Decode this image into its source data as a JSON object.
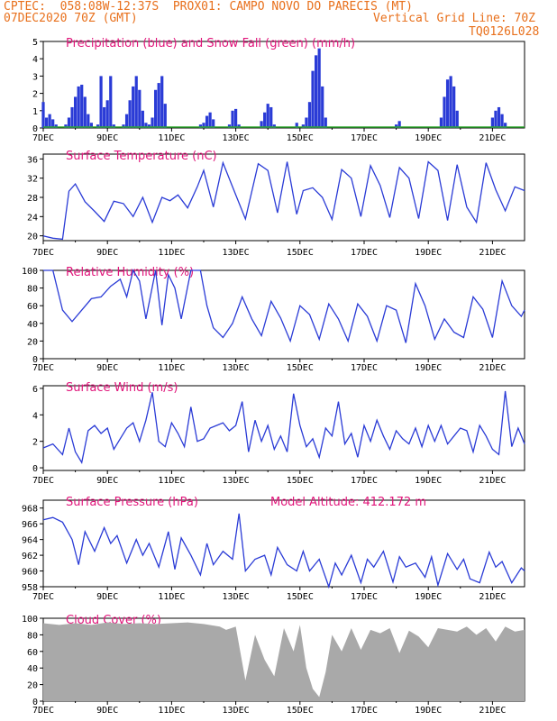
{
  "header": {
    "line1": "CPTEC:  058:08W-12:37S  PROX01: CAMPO NOVO DO PARECIS (MT)",
    "line2_left": "07DEC2020 70Z (GMT)",
    "line2_right": "Vertical Grid Line: 70Z",
    "line3_right": "TQ0126L028"
  },
  "colors": {
    "header": "#e8701c",
    "title": "#e0157a",
    "series": "#2a3bd6",
    "snow": "#2ea82e",
    "cloud": "#a9a9a9",
    "arrow": "#000000"
  },
  "x_labels": [
    "7DEC",
    "9DEC",
    "11DEC",
    "13DEC",
    "15DEC",
    "17DEC",
    "19DEC",
    "21DEC"
  ],
  "chart_data": [
    {
      "type": "bar",
      "title": "Precipitation (blue) and Snow Fall (green) (mm/h)",
      "yticks": [
        "0",
        "1",
        "2",
        "3",
        "4",
        "5"
      ],
      "ylim": [
        0,
        5
      ],
      "x_days": [
        0.0,
        0.1,
        0.2,
        0.3,
        0.4,
        0.5,
        0.6,
        0.7,
        0.8,
        0.9,
        1.0,
        1.1,
        1.2,
        1.3,
        1.4,
        1.5,
        1.6,
        1.7,
        1.8,
        1.9,
        2.0,
        2.1,
        2.2,
        2.3,
        2.4,
        2.5,
        2.6,
        2.7,
        2.8,
        2.9,
        3.0,
        3.1,
        3.2,
        3.3,
        3.4,
        3.5,
        3.6,
        3.7,
        3.8,
        3.9,
        4.0,
        4.1,
        4.2,
        4.3,
        4.4,
        4.5,
        4.6,
        4.7,
        4.8,
        4.9,
        5.0,
        5.1,
        5.2,
        5.3,
        5.4,
        5.5,
        5.6,
        5.7,
        5.8,
        5.9,
        6.0,
        6.1,
        6.2,
        6.3,
        6.4,
        6.5,
        6.6,
        6.7,
        6.8,
        6.9,
        7.0,
        7.1,
        7.2,
        7.3,
        7.4,
        7.5,
        7.6,
        7.7,
        7.8,
        7.9,
        8.0,
        8.1,
        8.2,
        8.3,
        8.4,
        8.5,
        8.6,
        8.7,
        8.8,
        8.9,
        9.0,
        9.1,
        9.2,
        9.3,
        9.4,
        9.5,
        9.6,
        9.7,
        9.8,
        9.9,
        10.0,
        10.1,
        10.2,
        10.3,
        10.4,
        10.5,
        10.6,
        10.7,
        10.8,
        10.9,
        11.0,
        11.1,
        11.2,
        11.3,
        11.4,
        11.5,
        11.6,
        11.7,
        11.8,
        11.9,
        12.0,
        12.1,
        12.2,
        12.3,
        12.4,
        12.5,
        12.6,
        12.7,
        12.8,
        12.9,
        13.0,
        13.1,
        13.2,
        13.3,
        13.4,
        13.5,
        13.6,
        13.7,
        13.8,
        13.9,
        14.0,
        14.1,
        14.2,
        14.3,
        14.4,
        14.5,
        14.6,
        14.7,
        14.8,
        14.9,
        15.0
      ],
      "series": [
        {
          "name": "Precipitation",
          "values": [
            1.5,
            0.6,
            0.8,
            0.5,
            0.2,
            0,
            0,
            0.2,
            0.6,
            1.2,
            1.8,
            2.4,
            2.5,
            1.8,
            0.8,
            0.3,
            0,
            0.2,
            3.0,
            1.2,
            1.6,
            3.0,
            0.2,
            0,
            0,
            0.2,
            0.8,
            1.6,
            2.4,
            3.0,
            2.2,
            1.0,
            0.3,
            0.2,
            0.6,
            2.2,
            2.6,
            3.0,
            1.4,
            0,
            0,
            0,
            0,
            0,
            0,
            0,
            0,
            0,
            0,
            0.2,
            0.3,
            0.7,
            0.9,
            0.5,
            0,
            0,
            0,
            0,
            0.2,
            1.0,
            1.1,
            0.2,
            0,
            0,
            0,
            0,
            0,
            0,
            0.4,
            0.9,
            1.4,
            1.2,
            0.2,
            0,
            0,
            0,
            0,
            0,
            0,
            0.3,
            0,
            0.2,
            0.6,
            1.5,
            3.3,
            4.2,
            4.6,
            2.4,
            0.6,
            0,
            0,
            0,
            0,
            0,
            0,
            0,
            0,
            0,
            0,
            0,
            0,
            0,
            0,
            0,
            0,
            0,
            0,
            0,
            0,
            0,
            0.2,
            0.4,
            0,
            0,
            0,
            0,
            0,
            0,
            0,
            0,
            0,
            0,
            0,
            0,
            0.6,
            1.8,
            2.8,
            3.0,
            2.4,
            1.0,
            0,
            0,
            0,
            0,
            0,
            0,
            0,
            0,
            0,
            0,
            0.6,
            1.0,
            1.2,
            0.8,
            0.3,
            0
          ]
        },
        {
          "name": "Snow Fall",
          "values": []
        }
      ]
    },
    {
      "type": "line",
      "title": "Surface Temperature (nC)",
      "yticks": [
        "20",
        "24",
        "28",
        "32",
        "36"
      ],
      "ylim": [
        19,
        37
      ],
      "x_days": [
        0,
        0.3,
        0.6,
        0.8,
        1.0,
        1.3,
        1.6,
        1.9,
        2.2,
        2.5,
        2.8,
        3.1,
        3.4,
        3.7,
        3.95,
        4.2,
        4.5,
        4.8,
        5.0,
        5.3,
        5.6,
        5.9,
        6.3,
        6.7,
        7.0,
        7.3,
        7.6,
        7.9,
        8.1,
        8.4,
        8.7,
        9.0,
        9.3,
        9.6,
        9.9,
        10.2,
        10.5,
        10.8,
        11.1,
        11.4,
        11.7,
        12.0,
        12.3,
        12.6,
        12.9,
        13.2,
        13.5,
        13.8,
        14.1,
        14.4,
        14.7,
        15.0
      ],
      "values": [
        20.0,
        19.5,
        19.3,
        29.3,
        30.8,
        27.1,
        25.1,
        23.0,
        27.2,
        26.7,
        24.0,
        28.0,
        22.8,
        28.0,
        27.3,
        28.5,
        25.8,
        30.2,
        33.6,
        26.0,
        35.2,
        30.2,
        23.5,
        35.0,
        33.6,
        24.8,
        35.4,
        24.5,
        29.4,
        30.0,
        28.0,
        23.4,
        33.8,
        32.0,
        24.0,
        34.6,
        30.5,
        23.8,
        34.2,
        32.0,
        23.6,
        35.4,
        33.6,
        23.2,
        34.8,
        26.0,
        22.8,
        35.2,
        29.6,
        25.2,
        30.2,
        29.4
      ]
    },
    {
      "type": "line",
      "title": "Relative Humidity (%)",
      "yticks": [
        "0",
        "20",
        "40",
        "60",
        "80",
        "100"
      ],
      "ylim": [
        0,
        100
      ],
      "x_days": [
        0,
        0.3,
        0.6,
        0.9,
        1.2,
        1.5,
        1.8,
        2.1,
        2.4,
        2.6,
        2.8,
        3.0,
        3.2,
        3.5,
        3.7,
        3.9,
        4.1,
        4.3,
        4.6,
        4.9,
        5.1,
        5.3,
        5.6,
        5.9,
        6.2,
        6.5,
        6.8,
        7.1,
        7.4,
        7.7,
        8.0,
        8.3,
        8.6,
        8.9,
        9.2,
        9.5,
        9.8,
        10.1,
        10.4,
        10.7,
        11.0,
        11.3,
        11.6,
        11.9,
        12.2,
        12.5,
        12.8,
        13.1,
        13.4,
        13.7,
        14.0,
        14.3,
        14.6,
        14.9,
        15.0
      ],
      "values": [
        100,
        100,
        55,
        42,
        55,
        68,
        70,
        82,
        90,
        70,
        100,
        88,
        45,
        100,
        38,
        95,
        80,
        45,
        100,
        100,
        60,
        35,
        24,
        40,
        70,
        45,
        26,
        65,
        46,
        20,
        60,
        50,
        22,
        62,
        45,
        20,
        62,
        48,
        20,
        60,
        55,
        18,
        85,
        60,
        22,
        45,
        30,
        24,
        70,
        56,
        24,
        88,
        60,
        48,
        55
      ]
    },
    {
      "type": "line",
      "title": "Surface Wind (m/s)",
      "yticks": [
        "0",
        "2",
        "4",
        "6"
      ],
      "ylim": [
        -0.2,
        6.2
      ],
      "x_days": [
        0,
        0.3,
        0.6,
        0.8,
        1.0,
        1.2,
        1.4,
        1.6,
        1.8,
        2.0,
        2.2,
        2.4,
        2.6,
        2.8,
        3.0,
        3.2,
        3.4,
        3.6,
        3.8,
        4.0,
        4.2,
        4.4,
        4.6,
        4.8,
        5.0,
        5.2,
        5.4,
        5.6,
        5.8,
        6.0,
        6.2,
        6.4,
        6.6,
        6.8,
        7.0,
        7.2,
        7.4,
        7.6,
        7.8,
        8.0,
        8.2,
        8.4,
        8.6,
        8.8,
        9.0,
        9.2,
        9.4,
        9.6,
        9.8,
        10.0,
        10.2,
        10.4,
        10.6,
        10.8,
        11.0,
        11.2,
        11.4,
        11.6,
        11.8,
        12.0,
        12.2,
        12.4,
        12.6,
        12.8,
        13.0,
        13.2,
        13.4,
        13.6,
        13.8,
        14.0,
        14.2,
        14.4,
        14.6,
        14.8,
        15.0
      ],
      "values": [
        1.5,
        1.8,
        1.0,
        3.0,
        1.2,
        0.4,
        2.8,
        3.2,
        2.6,
        3.0,
        1.4,
        2.2,
        3.0,
        3.4,
        2.0,
        3.6,
        5.7,
        2.0,
        1.6,
        3.4,
        2.6,
        1.6,
        4.6,
        2.0,
        2.2,
        3.0,
        3.2,
        3.4,
        2.8,
        3.2,
        5.0,
        1.2,
        3.6,
        2.0,
        3.2,
        1.4,
        2.4,
        1.2,
        5.6,
        3.2,
        1.6,
        2.2,
        0.8,
        3.0,
        2.4,
        5.0,
        1.8,
        2.6,
        0.8,
        3.2,
        2.0,
        3.6,
        2.4,
        1.4,
        2.8,
        2.2,
        1.8,
        3.0,
        1.6,
        3.2,
        2.0,
        3.2,
        1.8,
        2.4,
        3.0,
        2.8,
        1.2,
        3.2,
        2.4,
        1.4,
        1.0,
        5.8,
        1.6,
        3.0,
        1.8
      ]
    },
    {
      "type": "line",
      "title": "Surface Pressure (hPa)",
      "subtitle": "Model Altitude: 412.172  m",
      "yticks": [
        "958",
        "960",
        "962",
        "964",
        "966",
        "968"
      ],
      "ylim": [
        958,
        969
      ],
      "x_days": [
        0,
        0.3,
        0.6,
        0.9,
        1.1,
        1.3,
        1.6,
        1.9,
        2.1,
        2.3,
        2.6,
        2.9,
        3.1,
        3.3,
        3.6,
        3.9,
        4.1,
        4.3,
        4.6,
        4.9,
        5.1,
        5.3,
        5.6,
        5.9,
        6.1,
        6.3,
        6.6,
        6.9,
        7.1,
        7.3,
        7.6,
        7.9,
        8.1,
        8.3,
        8.6,
        8.9,
        9.1,
        9.3,
        9.6,
        9.9,
        10.1,
        10.3,
        10.6,
        10.9,
        11.1,
        11.3,
        11.6,
        11.9,
        12.1,
        12.3,
        12.6,
        12.9,
        13.1,
        13.3,
        13.6,
        13.9,
        14.1,
        14.3,
        14.6,
        14.9,
        15.0
      ],
      "values": [
        966.5,
        966.8,
        966.2,
        964.0,
        960.8,
        965.0,
        962.5,
        965.5,
        963.5,
        964.5,
        961.0,
        964.0,
        962.0,
        963.5,
        960.5,
        965.0,
        960.2,
        964.2,
        962.0,
        959.5,
        963.5,
        960.8,
        962.5,
        961.5,
        967.3,
        960.0,
        961.5,
        962.0,
        959.5,
        963.0,
        960.8,
        960.0,
        962.5,
        960.0,
        961.5,
        958.0,
        961.0,
        959.5,
        962.0,
        958.5,
        961.5,
        960.5,
        962.5,
        958.6,
        961.8,
        960.5,
        961.0,
        959.2,
        961.8,
        958.2,
        962.2,
        960.2,
        961.5,
        959.0,
        958.5,
        962.4,
        960.5,
        961.2,
        958.5,
        960.4,
        960.0
      ]
    },
    {
      "type": "area",
      "title": "Cloud Cover (%)",
      "yticks": [
        "0",
        "20",
        "40",
        "60",
        "80",
        "100"
      ],
      "ylim": [
        0,
        100
      ],
      "x_days": [
        0,
        0.5,
        1,
        1.5,
        2,
        2.5,
        3,
        3.5,
        4,
        4.5,
        5,
        5.5,
        5.7,
        6.0,
        6.3,
        6.6,
        6.9,
        7.2,
        7.5,
        7.8,
        8.0,
        8.2,
        8.4,
        8.6,
        8.8,
        9.0,
        9.3,
        9.6,
        9.9,
        10.2,
        10.5,
        10.8,
        11.1,
        11.4,
        11.7,
        12.0,
        12.3,
        12.6,
        12.9,
        13.2,
        13.5,
        13.8,
        14.1,
        14.4,
        14.7,
        15.0
      ],
      "values": [
        94,
        92,
        94,
        92,
        95,
        93,
        94,
        93,
        94,
        95,
        93,
        90,
        86,
        90,
        25,
        80,
        50,
        30,
        88,
        60,
        92,
        40,
        15,
        5,
        35,
        80,
        60,
        88,
        62,
        86,
        82,
        88,
        58,
        85,
        78,
        65,
        88,
        86,
        84,
        90,
        80,
        88,
        72,
        90,
        84,
        86
      ]
    }
  ]
}
